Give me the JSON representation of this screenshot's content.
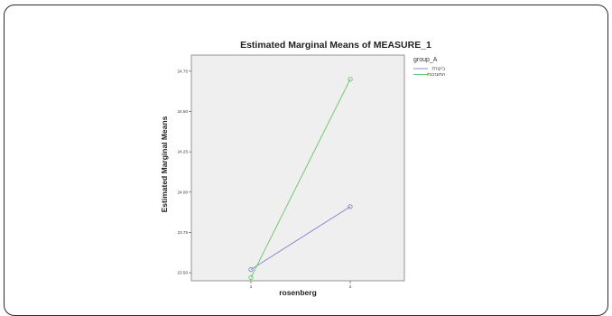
{
  "chart_data": {
    "type": "line",
    "title": "Estimated Marginal Means of MEASURE_1",
    "xlabel": "rosenberg",
    "ylabel": "Estimated Marginal Means",
    "categories": [
      "1",
      "2"
    ],
    "y_ticks": [
      "23.50",
      "23.75",
      "24.00",
      "24.25",
      "24.50",
      "24.75"
    ],
    "ylim": [
      23.45,
      24.85
    ],
    "grid": false,
    "legend_position": "top-right",
    "legend_title": "group_A",
    "series": [
      {
        "name": "ביקורת",
        "values": [
          23.52,
          23.91
        ],
        "color": "#8888cc"
      },
      {
        "name": "התערבות",
        "values": [
          23.47,
          24.7
        ],
        "color": "#6fc86f"
      }
    ],
    "plot_background": "#efefef"
  }
}
